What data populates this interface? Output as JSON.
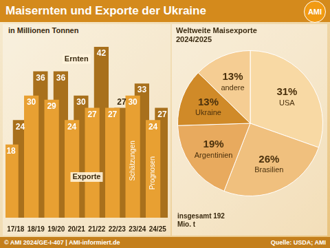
{
  "header": {
    "title": "Maisernten und Exporte der Ukraine",
    "logo": "AMI"
  },
  "footer": {
    "left": "© AMI 2024/GE-I-407 | AMI-informiert.de",
    "right": "Quelle: USDA; AMI"
  },
  "chart_data": [
    {
      "type": "bar",
      "subtitle": "in Millionen Tonnen",
      "categories": [
        "17/18",
        "18/19",
        "19/20",
        "20/21",
        "21/22",
        "22/23",
        "23/24",
        "24/25"
      ],
      "series": [
        {
          "name": "Ernten",
          "color": "#a8701c",
          "values": [
            24,
            36,
            36,
            30,
            42,
            27,
            33,
            27
          ]
        },
        {
          "name": "Exporte",
          "color": "#e8a032",
          "values": [
            18,
            30,
            29,
            24,
            27,
            27,
            30,
            24
          ]
        }
      ],
      "ylim": [
        0,
        42
      ],
      "grid": false,
      "data_labels": true,
      "tick_labels": "x",
      "annotations": [
        {
          "text": "Schätzungen",
          "category": "23/24"
        },
        {
          "text": "Prognosen",
          "category": "24/25"
        }
      ]
    },
    {
      "type": "pie",
      "title": "Weltweite Maisexporte",
      "subtitle": "2024/2025",
      "categories": [
        "USA",
        "Brasilien",
        "Argentinien",
        "Ukraine",
        "andere"
      ],
      "values": [
        31,
        26,
        19,
        13,
        13
      ],
      "value_labels": [
        "31%",
        "26%",
        "19%",
        "13%",
        "13%"
      ],
      "colors": [
        "#f8d9a4",
        "#f0c07e",
        "#e8aa5e",
        "#d08a28",
        "#f5cd93"
      ],
      "data_labels": true,
      "annotations": [
        "insgesamt 192 Mio. t"
      ]
    }
  ]
}
